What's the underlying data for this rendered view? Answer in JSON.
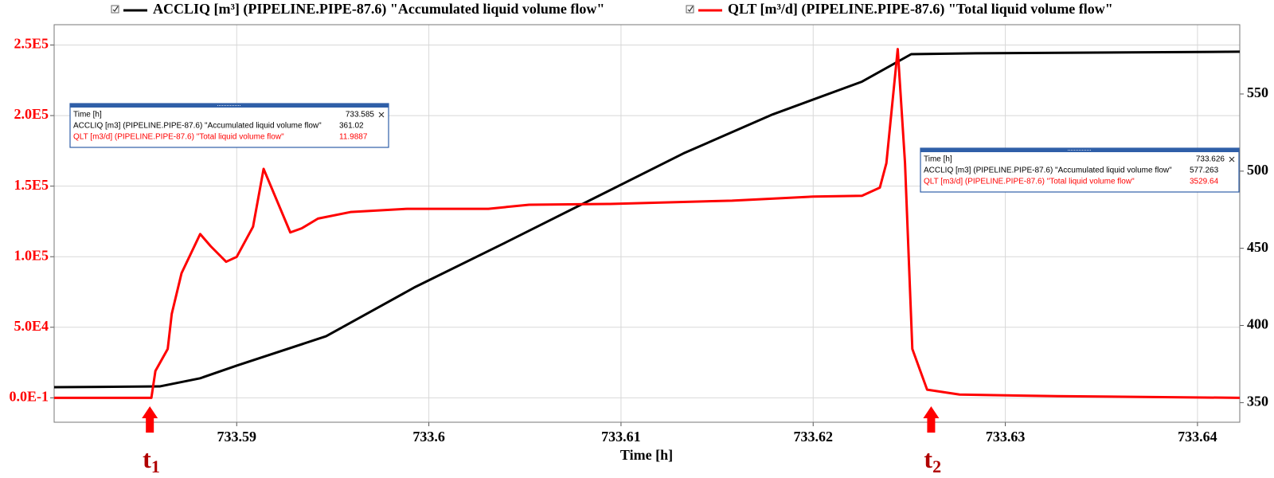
{
  "chart_data": {
    "type": "line",
    "legend": "top",
    "grid": true,
    "x_label": "Time [h]",
    "xlim": [
      733.5805,
      733.6422
    ],
    "xticks": [
      733.59,
      733.6,
      733.61,
      733.62,
      733.63,
      733.64
    ],
    "ylim": [
      -17300,
      264400
    ],
    "yticks": [
      {
        "value": 0,
        "label": "0.0E-1"
      },
      {
        "value": 50000,
        "label": "5.0E4"
      },
      {
        "value": 100000,
        "label": "1.0E5"
      },
      {
        "value": 150000,
        "label": "1.5E5"
      },
      {
        "value": 200000,
        "label": "2.0E5"
      },
      {
        "value": 250000,
        "label": "2.5E5"
      }
    ],
    "y2lim": [
      337.3,
      594.9
    ],
    "y2ticks": [
      350,
      400,
      450,
      500,
      550
    ],
    "series": [
      {
        "name": "ACCLIQ [m³] (PIPELINE.PIPE-87.6) \"Accumulated liquid volume flow\"",
        "color": "#000000",
        "axis": "y2",
        "x": [
          733.5805,
          733.58599,
          733.5881,
          733.59,
          733.59465,
          733.5993,
          733.60395,
          733.6086,
          733.61325,
          733.6179,
          733.62254,
          733.6251,
          733.62846,
          733.6422
        ],
        "values": [
          360,
          360.5,
          365.8,
          374,
          393,
          425,
          453.5,
          482.5,
          511.5,
          536.8,
          558,
          575.8,
          576.4,
          577.4
        ]
      },
      {
        "name": "QLT [m³/d] (PIPELINE.PIPE-87.6) \"Total liquid volume flow\"",
        "color": "#ff0000",
        "axis": "y",
        "x": [
          733.5805,
          733.58556,
          733.58577,
          733.58641,
          733.58662,
          733.58713,
          733.5881,
          733.58865,
          733.58945,
          733.59,
          733.59085,
          733.5914,
          733.59279,
          733.59338,
          733.59423,
          733.59592,
          733.59888,
          733.6031,
          733.60522,
          733.60944,
          733.61578,
          733.62001,
          733.62254,
          733.62347,
          733.62381,
          733.6244,
          733.62478,
          733.62516,
          733.62593,
          733.62762,
          733.63269,
          733.6422
        ],
        "values": [
          0,
          0,
          19050,
          34640,
          59470,
          88340,
          116050,
          107390,
          96420,
          99880,
          121250,
          162240,
          117200,
          120090,
          127020,
          131640,
          133950,
          133950,
          136830,
          137410,
          139720,
          142610,
          143190,
          148960,
          166280,
          247110,
          166280,
          34640,
          5770,
          2310,
          1155,
          0
        ]
      }
    ],
    "annotations": [
      {
        "label": "t",
        "sub": "1",
        "x": 733.58548
      },
      {
        "label": "t",
        "sub": "2",
        "x": 733.62614
      }
    ],
    "tooltips": [
      {
        "rows": [
          [
            "Time [h]",
            "733.585"
          ],
          [
            "ACCLIQ [m3] (PIPELINE.PIPE-87.6) \"Accumulated liquid volume flow\"",
            "361.02"
          ],
          [
            "QLT [m3/d] (PIPELINE.PIPE-87.6) \"Total liquid volume flow\"",
            "11.9887"
          ]
        ]
      },
      {
        "rows": [
          [
            "Time [h]",
            "733.626"
          ],
          [
            "ACCLIQ [m3] (PIPELINE.PIPE-87.6) \"Accumulated liquid volume flow\"",
            "577.263"
          ],
          [
            "QLT [m3/d] (PIPELINE.PIPE-87.6) \"Total liquid volume flow\"",
            "3529.64"
          ]
        ]
      }
    ]
  }
}
